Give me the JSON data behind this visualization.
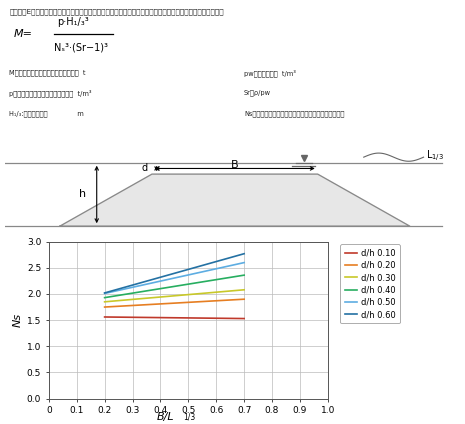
{
  "title_text": "スーパーEーユニットをマウンド被覆材として使用する際の必要重量は以下のハドソン式により算定します。",
  "def_M": "M：袋型根固め工法用袋材の必要重量  t",
  "def_p": "p：袋型根固め工法用袋材の真密度  t/m³",
  "def_H": "H₁/₃:設計有義波高              m",
  "def_pw": "pw：海水の密度  t/m³",
  "def_Sr": "Sr：ρ/pw",
  "def_Ns": "Ns：安定常数（被覆材の形状、勾配によって定まる）",
  "legend_labels": [
    "d/h 0.10",
    "d/h 0.20",
    "d/h 0.30",
    "d/h 0.40",
    "d/h 0.50",
    "d/h 0.60"
  ],
  "line_colors": [
    "#c0392b",
    "#e67e22",
    "#c8c829",
    "#27ae60",
    "#5dade2",
    "#2471a3"
  ],
  "ylabel": "Ns",
  "xlim": [
    0,
    1.0
  ],
  "ylim": [
    0.0,
    3.0
  ],
  "xticks": [
    0,
    0.1,
    0.2,
    0.3,
    0.4,
    0.5,
    0.6,
    0.7,
    0.8,
    0.9,
    1
  ],
  "yticks": [
    0.0,
    0.5,
    1.0,
    1.5,
    2.0,
    2.5,
    3.0
  ],
  "lines_data": {
    "d/h 0.10": {
      "x": [
        0.2,
        0.7
      ],
      "y": [
        1.56,
        1.53
      ]
    },
    "d/h 0.20": {
      "x": [
        0.2,
        0.7
      ],
      "y": [
        1.75,
        1.9
      ]
    },
    "d/h 0.30": {
      "x": [
        0.2,
        0.7
      ],
      "y": [
        1.85,
        2.08
      ]
    },
    "d/h 0.40": {
      "x": [
        0.2,
        0.7
      ],
      "y": [
        1.93,
        2.36
      ]
    },
    "d/h 0.50": {
      "x": [
        0.2,
        0.7
      ],
      "y": [
        2.01,
        2.6
      ]
    },
    "d/h 0.60": {
      "x": [
        0.2,
        0.7
      ],
      "y": [
        2.02,
        2.77
      ]
    }
  },
  "bg_color": "#ffffff",
  "grid_color": "#bbbbbb"
}
